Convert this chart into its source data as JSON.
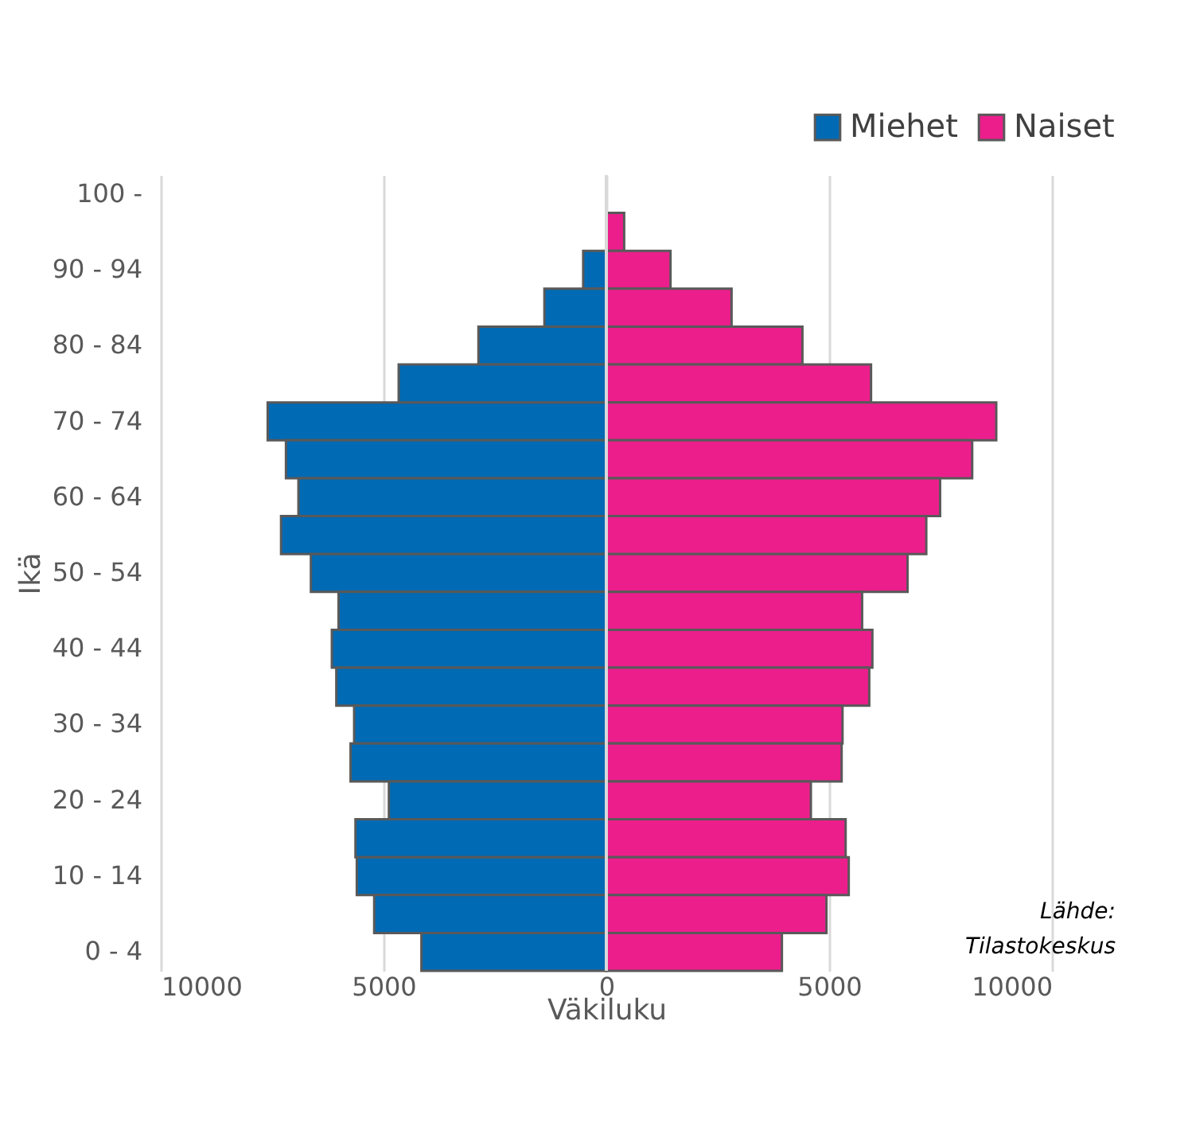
{
  "chart_data": {
    "type": "bar",
    "orientation": "horizontal",
    "xlabel": "Väkiluku",
    "ylabel": "Ikä",
    "categories": [
      "100 -",
      null,
      "90 - 94",
      null,
      "80 - 84",
      null,
      "70 - 74",
      null,
      "60 - 64",
      null,
      "50 - 54",
      null,
      "40 - 44",
      null,
      "30 - 34",
      null,
      "20 - 24",
      null,
      "10 - 14",
      null,
      "0 - 4"
    ],
    "series": [
      {
        "name": "Miehet",
        "color": "#006ab4",
        "values": [
          null,
          null,
          -520,
          -1390,
          -2870,
          -4660,
          -7600,
          -7190,
          -6910,
          -7300,
          -6630,
          -6010,
          -6160,
          -6060,
          -5660,
          -5740,
          -4880,
          -5630,
          -5600,
          -5210,
          -4150
        ]
      },
      {
        "name": "Naiset",
        "color": "#ec1e8c",
        "values": [
          null,
          400,
          1440,
          2810,
          4400,
          5940,
          8750,
          8210,
          7490,
          7180,
          6760,
          5740,
          5970,
          5900,
          5300,
          5280,
          4590,
          5370,
          5440,
          4940,
          3940
        ]
      }
    ],
    "xlim": [
      -10000,
      10000
    ],
    "stacked": true,
    "xticks": [
      {
        "value": -10000,
        "label": "10000"
      },
      {
        "value": -5000,
        "label": "5000"
      },
      0,
      5000,
      10000
    ],
    "grid": "x",
    "legend": "top right",
    "annotations": [
      "Lähde:\nTilastokeskus"
    ]
  }
}
